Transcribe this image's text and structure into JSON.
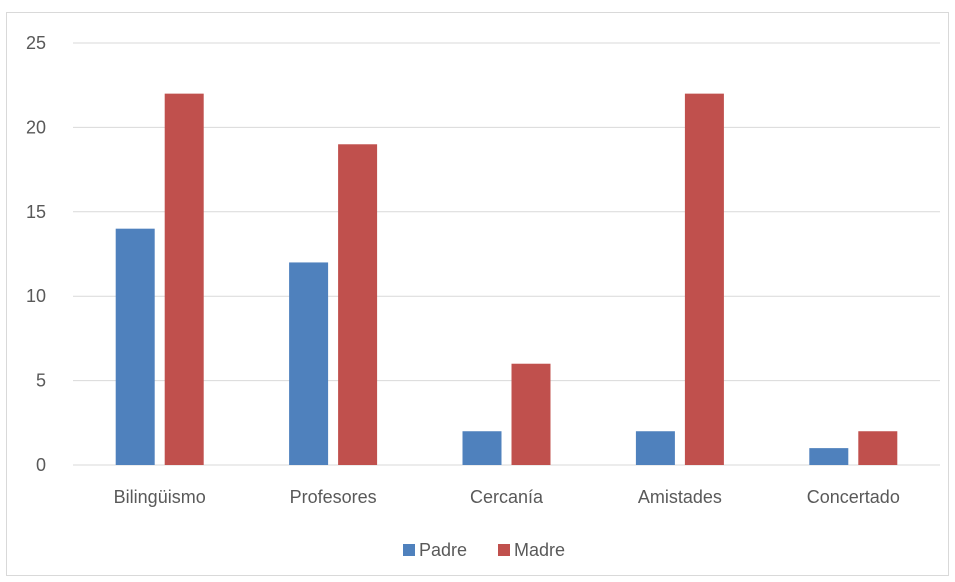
{
  "chart_data": {
    "type": "bar",
    "title": "",
    "xlabel": "",
    "ylabel": "",
    "categories": [
      "Bilingüismo",
      "Profesores",
      "Cercanía",
      "Amistades",
      "Concertado"
    ],
    "series": [
      {
        "name": "Padre",
        "values": [
          14,
          12,
          2,
          2,
          1
        ],
        "color": "#4f81bd"
      },
      {
        "name": "Madre",
        "values": [
          22,
          19,
          6,
          22,
          2
        ],
        "color": "#c0504d"
      }
    ],
    "ylim": [
      0,
      25
    ],
    "yticks": [
      0,
      5,
      10,
      15,
      20,
      25
    ],
    "grid": true,
    "legend": "bottom"
  }
}
